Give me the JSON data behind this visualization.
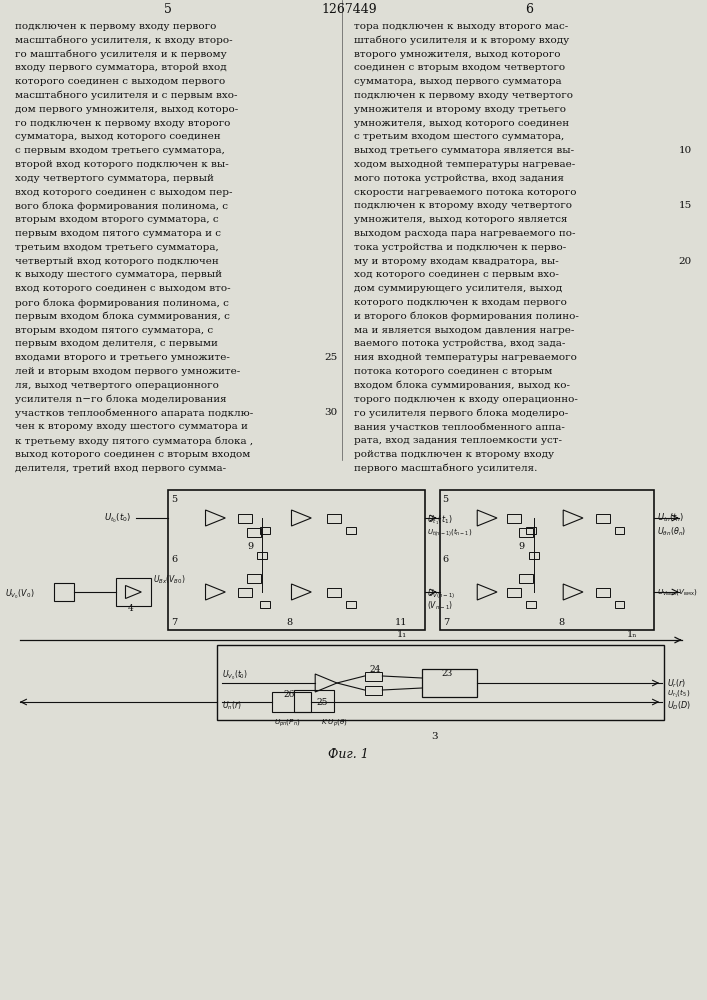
{
  "bg_color": "#e8e8e0",
  "text_color": "#1a1a1a",
  "page_num_left": "5",
  "page_num_right": "6",
  "patent_num": "1267449",
  "left_col_lines": [
    "подключен к первому входу первого",
    "масштабного усилителя, к входу второ-",
    "го маштабного усилителя и к первому",
    "входу первого сумматора, второй вход",
    "которого соединен с выходом первого",
    "масштабного усилителя и с первым вхо-",
    "дом первого умножителя, выход которо-",
    "го подключен к первому входу второго",
    "сумматора, выход которого соединен",
    "с первым входом третьего сумматора,",
    "второй вход которого подключен к вы-",
    "ходу четвертого сумматора, первый",
    "вход которого соединен с выходом пер-",
    "вого блока формирования полинома, с",
    "вторым входом второго сумматора, с",
    "первым входом пятого сумматора и с",
    "третьим входом третьего сумматора,",
    "четвертый вход которого подключен",
    "к выходу шестого сумматора, первый",
    "вход которого соединен с выходом вто-",
    "рого блока формирования полинома, с",
    "первым входом блока суммирования, с",
    "вторым входом пятого сумматора, с",
    "первым входом делителя, с первыми",
    "входами второго и третьего умножите-",
    "лей и вторым входом первого умножите-",
    "ля, выход четвертого операционного",
    "усилителя n−го блока моделирования",
    "участков теплообменного апарата подклю-",
    "чен к второму входу шестого сумматора и",
    "к третьему входу пятого сумматора блока ,",
    "выход которого соединен с вторым входом",
    "делителя, третий вход первого сумма-"
  ],
  "right_col_lines": [
    "тора подключен к выходу второго мас-",
    "штабного усилителя и к второму входу",
    "второго умножителя, выход которого",
    "соединен с вторым входом четвертого",
    "сумматора, выход первого сумматора",
    "подключен к первому входу четвертого",
    "умножителя и второму входу третьего",
    "умножителя, выход которого соединен",
    "с третьим входом шестого сумматора,",
    "выход третьего сумматора является вы-",
    "ходом выходной температуры нагревае-",
    "мого потока устройства, вход задания",
    "скорости нагреваемого потока которого",
    "подключен к второму входу четвертого",
    "умножителя, выход которого является",
    "выходом расхода пара нагреваемого по-",
    "тока устройства и подключен к перво-",
    "му и второму входам квадратора, вы-",
    "ход которого соединен с первым вхо-",
    "дом суммирующего усилителя, выход",
    "которого подключен к входам первого",
    "и второго блоков формирования полино-",
    "ма и является выходом давления нагре-",
    "ваемого потока устройства, вход зада-",
    "ния входной температуры нагреваемого",
    "потока которого соединен с вторым",
    "входом блока суммирования, выход ко-",
    "торого подключен к входу операционно-",
    "го усилителя первого блока моделиро-",
    "вания участков теплообменного аппа-",
    "рата, вход задания теплоемкости уст-",
    "ройства подключен к второму входу",
    "первого масштабного усилителя."
  ],
  "line_numbers_left": {
    "24": "25",
    "28": "30"
  },
  "line_numbers_right": {
    "9": "10",
    "13": "15",
    "17": "20"
  },
  "fig_caption": "Фиг. 1"
}
